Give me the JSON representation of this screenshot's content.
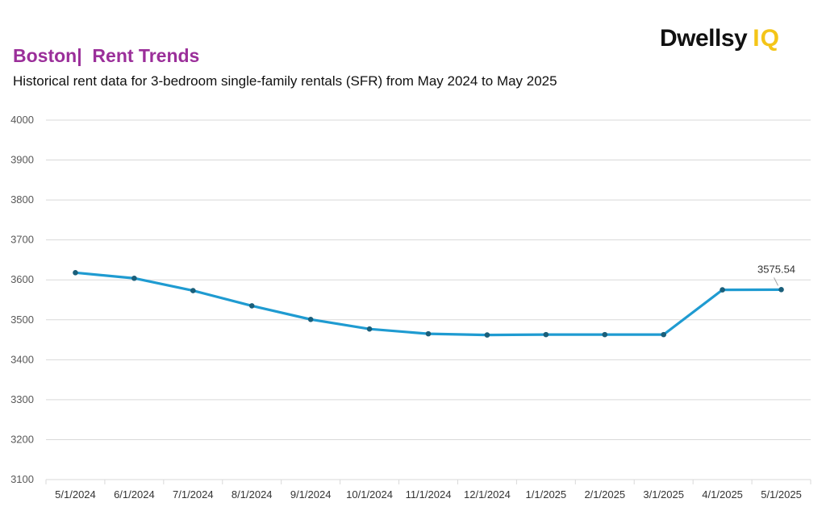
{
  "header": {
    "title": "Boston|  Rent Trends",
    "subtitle": "Historical rent data for 3-bedroom single-family rentals (SFR) from May 2024 to May 2025"
  },
  "logo": {
    "text": "Dwellsy",
    "suffix": "IQ",
    "accent_color": "#f4c518"
  },
  "chart_data": {
    "type": "line",
    "title": "Boston|  Rent Trends",
    "subtitle": "Historical rent data for 3-bedroom single-family rentals (SFR) from May 2024 to May 2025",
    "xlabel": "",
    "ylabel": "",
    "categories": [
      "5/1/2024",
      "6/1/2024",
      "7/1/2024",
      "8/1/2024",
      "9/1/2024",
      "10/1/2024",
      "11/1/2024",
      "12/1/2024",
      "1/1/2025",
      "2/1/2025",
      "3/1/2025",
      "4/1/2025",
      "5/1/2025"
    ],
    "series": [
      {
        "values": [
          3618,
          3604,
          3573,
          3535,
          3501,
          3477,
          3465,
          3462,
          3463,
          3463,
          3463,
          3575,
          3575.54
        ],
        "color": "#1f9bd1",
        "marker_color": "#1b5f7a"
      }
    ],
    "ylim": [
      3100,
      4000
    ],
    "yticks": [
      3100,
      3200,
      3300,
      3400,
      3500,
      3600,
      3700,
      3800,
      3900,
      4000
    ],
    "grid": true,
    "legend": "none",
    "annotations": [
      {
        "category": "5/1/2025",
        "text": "3575.54"
      }
    ]
  }
}
